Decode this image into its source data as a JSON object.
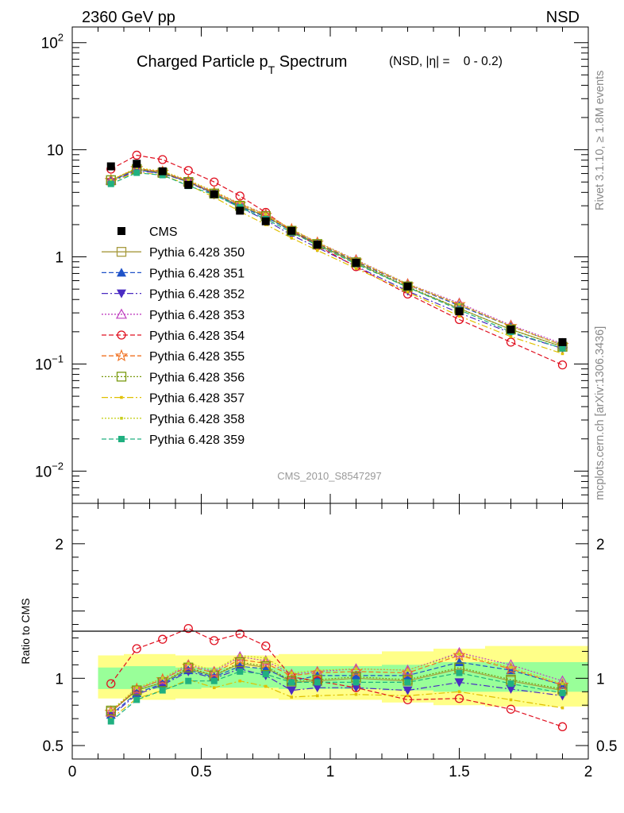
{
  "header": {
    "left": "2360 GeV pp",
    "right": "NSD"
  },
  "title": {
    "main_a": "Charged Particle p",
    "main_sub": "T",
    "main_b": " Spectrum",
    "selection": "(NSD, |η| =    0 - 0.2)"
  },
  "side_labels": {
    "rivet": "Rivet 3.1.10, ≥ 1.8M events",
    "mcplots": "mcplots.cern.ch [arXiv:1306.3436]"
  },
  "analysis_tag": "CMS_2010_S8547297",
  "ratio_ylabel": "Ratio to CMS",
  "colors": {
    "data": "#000000",
    "band_outer": "#ffff88",
    "band_inner": "#99ff99"
  },
  "chart_data": [
    {
      "type": "line",
      "yscale": "log",
      "xlim": [
        0,
        2
      ],
      "ylim": [
        0.005,
        140
      ],
      "yticks": [
        {
          "value": 0.01,
          "base": "10",
          "exp": "−2"
        },
        {
          "value": 0.1,
          "base": "10",
          "exp": "−1"
        },
        {
          "value": 1,
          "base": "1",
          "exp": ""
        },
        {
          "value": 10,
          "base": "10",
          "exp": ""
        },
        {
          "value": 100,
          "base": "10",
          "exp": "2"
        }
      ],
      "legend_position": "center-left",
      "data_series": {
        "name": "CMS",
        "x": [
          0.15,
          0.25,
          0.35,
          0.45,
          0.55,
          0.65,
          0.75,
          0.85,
          0.95,
          1.1,
          1.3,
          1.5,
          1.7,
          1.9
        ],
        "y": [
          7.0,
          7.4,
          6.3,
          4.7,
          3.85,
          2.7,
          2.15,
          1.75,
          1.3,
          0.88,
          0.53,
          0.31,
          0.21,
          0.16
        ]
      },
      "series": [
        {
          "name": "Pythia 6.428 350",
          "color": "#a69a3c",
          "dash": "",
          "marker": "open-square",
          "y": [
            5.2,
            6.6,
            6.1,
            5.0,
            3.9,
            3.0,
            2.4,
            1.75,
            1.3,
            0.88,
            0.52,
            0.33,
            0.21,
            0.145
          ]
        },
        {
          "name": "Pythia 6.428 351",
          "color": "#1f52c8",
          "dash": "6,3",
          "marker": "filled-triangle-up",
          "y": [
            5.1,
            6.5,
            6.0,
            5.0,
            3.9,
            2.95,
            2.35,
            1.75,
            1.33,
            0.9,
            0.55,
            0.35,
            0.225,
            0.15
          ]
        },
        {
          "name": "Pythia 6.428 352",
          "color": "#4a2bc2",
          "dash": "8,3,2,3",
          "marker": "filled-triangle-down",
          "y": [
            5.0,
            6.4,
            6.0,
            5.0,
            3.8,
            2.9,
            2.2,
            1.6,
            1.22,
            0.82,
            0.48,
            0.3,
            0.195,
            0.14
          ]
        },
        {
          "name": "Pythia 6.428 353",
          "color": "#c040c0",
          "dash": "2,2",
          "marker": "open-triangle-up",
          "y": [
            5.2,
            6.7,
            6.2,
            5.1,
            4.0,
            3.15,
            2.5,
            1.8,
            1.37,
            0.94,
            0.56,
            0.37,
            0.23,
            0.155
          ]
        },
        {
          "name": "Pythia 6.428 354",
          "color": "#e01020",
          "dash": "6,3",
          "marker": "open-circle",
          "y": [
            6.6,
            8.9,
            8.1,
            6.4,
            5.0,
            3.7,
            2.6,
            1.75,
            1.27,
            0.81,
            0.45,
            0.26,
            0.16,
            0.098
          ]
        },
        {
          "name": "Pythia 6.428 355",
          "color": "#f07020",
          "dash": "6,3",
          "marker": "open-star",
          "y": [
            5.2,
            6.7,
            6.2,
            5.1,
            4.0,
            3.1,
            2.45,
            1.8,
            1.35,
            0.92,
            0.55,
            0.36,
            0.225,
            0.15
          ]
        },
        {
          "name": "Pythia 6.428 356",
          "color": "#7a9a10",
          "dash": "2,2",
          "marker": "open-square",
          "y": [
            5.2,
            6.6,
            6.1,
            5.0,
            3.9,
            3.0,
            2.4,
            1.75,
            1.32,
            0.89,
            0.53,
            0.33,
            0.21,
            0.145
          ]
        },
        {
          "name": "Pythia 6.428 357",
          "color": "#e0c000",
          "dash": "8,3,2,3",
          "marker": "small-dot",
          "y": [
            5.0,
            6.2,
            5.8,
            4.7,
            3.6,
            2.65,
            2.0,
            1.5,
            1.15,
            0.78,
            0.47,
            0.28,
            0.18,
            0.125
          ]
        },
        {
          "name": "Pythia 6.428 358",
          "color": "#c8d020",
          "dash": "2,2",
          "marker": "small-dot",
          "y": [
            5.2,
            6.8,
            6.3,
            5.2,
            4.1,
            3.15,
            2.5,
            1.82,
            1.37,
            0.93,
            0.56,
            0.36,
            0.225,
            0.15
          ]
        },
        {
          "name": "Pythia 6.428 359",
          "color": "#20b080",
          "dash": "6,3",
          "marker": "filled-square",
          "y": [
            4.8,
            6.1,
            5.8,
            4.6,
            3.8,
            2.9,
            2.25,
            1.7,
            1.28,
            0.86,
            0.52,
            0.32,
            0.2,
            0.14
          ]
        }
      ]
    },
    {
      "type": "line",
      "ylabel": "Ratio to CMS",
      "xlim": [
        0,
        2
      ],
      "ylim": [
        0.4,
        2.3
      ],
      "xticks": [
        "0",
        "0.5",
        "1",
        "1.5",
        "2"
      ],
      "xtick_values": [
        0,
        0.5,
        1,
        1.5,
        2
      ],
      "yticks": [
        "0.5",
        "1",
        "2"
      ],
      "ytick_values": [
        0.5,
        1,
        2
      ],
      "bands": {
        "edges": [
          0.1,
          0.2,
          0.3,
          0.4,
          0.5,
          0.6,
          0.7,
          0.8,
          0.9,
          1.0,
          1.2,
          1.4,
          1.6,
          1.8,
          2.0
        ],
        "outer_lo": [
          0.85,
          0.84,
          0.84,
          0.85,
          0.85,
          0.85,
          0.85,
          0.84,
          0.84,
          0.84,
          0.82,
          0.8,
          0.79,
          0.79
        ],
        "outer_hi": [
          1.17,
          1.18,
          1.18,
          1.17,
          1.17,
          1.17,
          1.17,
          1.18,
          1.18,
          1.18,
          1.2,
          1.22,
          1.24,
          1.24
        ],
        "inner_lo": [
          0.92,
          0.92,
          0.92,
          0.92,
          0.93,
          0.93,
          0.93,
          0.92,
          0.92,
          0.92,
          0.91,
          0.9,
          0.9,
          0.9
        ],
        "inner_hi": [
          1.08,
          1.09,
          1.09,
          1.08,
          1.08,
          1.08,
          1.08,
          1.09,
          1.09,
          1.09,
          1.1,
          1.12,
          1.12,
          1.12
        ]
      },
      "x": [
        0.15,
        0.25,
        0.35,
        0.45,
        0.55,
        0.65,
        0.75,
        0.85,
        0.95,
        1.1,
        1.3,
        1.5,
        1.7,
        1.9
      ],
      "series": [
        {
          "name": "Pythia 6.428 350",
          "y": [
            0.75,
            0.91,
            0.97,
            1.07,
            1.02,
            1.11,
            1.08,
            0.97,
            0.98,
            1.0,
            0.98,
            1.07,
            0.98,
            0.91
          ]
        },
        {
          "name": "Pythia 6.428 351",
          "y": [
            0.73,
            0.89,
            0.96,
            1.06,
            1.01,
            1.09,
            1.07,
            0.98,
            1.02,
            1.02,
            1.02,
            1.12,
            1.06,
            0.95
          ]
        },
        {
          "name": "Pythia 6.428 352",
          "y": [
            0.72,
            0.88,
            0.95,
            1.05,
            1.0,
            1.07,
            1.02,
            0.91,
            0.93,
            0.93,
            0.91,
            0.97,
            0.92,
            0.87
          ]
        },
        {
          "name": "Pythia 6.428 353",
          "y": [
            0.75,
            0.92,
            0.99,
            1.1,
            1.05,
            1.16,
            1.13,
            1.03,
            1.05,
            1.07,
            1.06,
            1.19,
            1.1,
            0.98
          ]
        },
        {
          "name": "Pythia 6.428 354",
          "y": [
            0.96,
            1.22,
            1.29,
            1.37,
            1.28,
            1.33,
            1.24,
            1.01,
            0.98,
            0.93,
            0.84,
            0.85,
            0.77,
            0.64
          ]
        },
        {
          "name": "Pythia 6.428 355",
          "y": [
            0.75,
            0.92,
            0.99,
            1.09,
            1.04,
            1.14,
            1.11,
            1.02,
            1.04,
            1.05,
            1.04,
            1.17,
            1.07,
            0.95
          ]
        },
        {
          "name": "Pythia 6.428 356",
          "y": [
            0.76,
            0.91,
            0.97,
            1.08,
            1.02,
            1.12,
            1.09,
            0.98,
            0.99,
            1.01,
            0.99,
            1.08,
            0.99,
            0.92
          ]
        },
        {
          "name": "Pythia 6.428 357",
          "y": [
            0.7,
            0.85,
            0.91,
            0.99,
            0.93,
            0.98,
            0.94,
            0.86,
            0.87,
            0.88,
            0.87,
            0.9,
            0.84,
            0.78
          ]
        },
        {
          "name": "Pythia 6.428 358",
          "y": [
            0.76,
            0.93,
            1.0,
            1.11,
            1.06,
            1.17,
            1.15,
            1.04,
            1.06,
            1.07,
            1.06,
            1.18,
            1.08,
            0.96
          ]
        },
        {
          "name": "Pythia 6.428 359",
          "y": [
            0.68,
            0.84,
            0.91,
            0.98,
            0.98,
            1.05,
            1.03,
            0.97,
            0.97,
            0.97,
            0.97,
            1.04,
            0.96,
            0.89
          ]
        }
      ]
    }
  ]
}
